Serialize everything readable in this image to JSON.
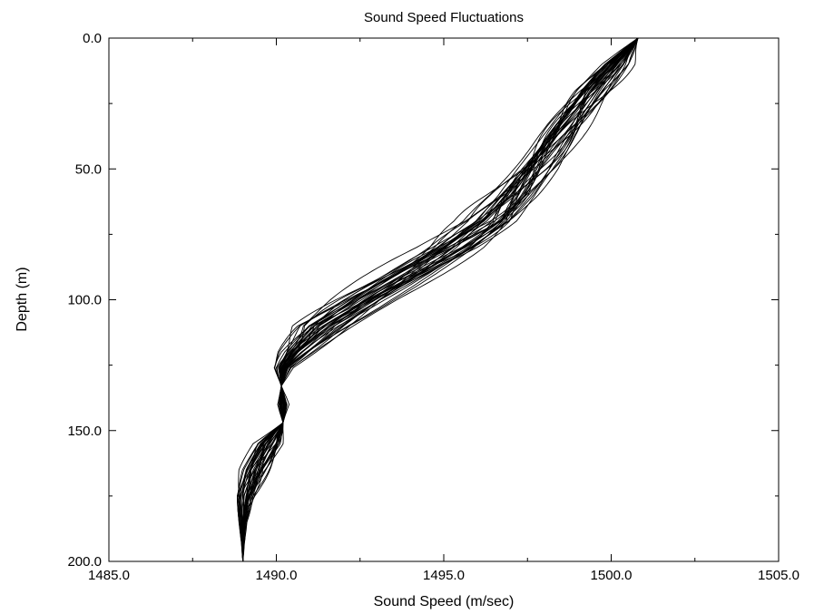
{
  "chart_data": {
    "type": "line",
    "title": "Sound Speed Fluctuations",
    "xlabel": "Sound Speed (m/sec)",
    "ylabel": "Depth (m)",
    "xlim": [
      1485.0,
      1505.0
    ],
    "ylim": [
      0.0,
      200.0
    ],
    "y_inverted": true,
    "x_ticks": [
      "1485.0",
      "1490.0",
      "1495.0",
      "1500.0",
      "1505.0"
    ],
    "y_ticks": [
      "0.0",
      "50.0",
      "100.0",
      "150.0",
      "200.0"
    ],
    "grid": false,
    "line_color": "#000000",
    "mean_profile": {
      "depth": [
        0,
        10,
        20,
        30,
        40,
        50,
        60,
        70,
        80,
        90,
        100,
        110,
        120,
        126,
        133,
        140,
        147,
        155,
        165,
        175,
        185,
        193,
        200
      ],
      "speed": [
        1500.8,
        1500.1,
        1499.4,
        1498.8,
        1498.2,
        1497.6,
        1497.0,
        1496.3,
        1495.2,
        1493.9,
        1492.6,
        1491.4,
        1490.6,
        1490.2,
        1490.15,
        1490.2,
        1490.2,
        1489.8,
        1489.4,
        1489.1,
        1489.0,
        1489.0,
        1489.0
      ]
    },
    "ensemble": {
      "count": 40,
      "amplitude_by_depth": [
        0,
        0.5,
        0.7,
        0.8,
        0.9,
        1.0,
        1.0,
        1.0,
        1.0,
        1.0,
        1.0,
        1.0,
        0.6,
        0.3,
        0,
        0.2,
        0,
        0.55,
        0.55,
        0.4,
        0.15,
        0.05,
        0
      ]
    }
  }
}
